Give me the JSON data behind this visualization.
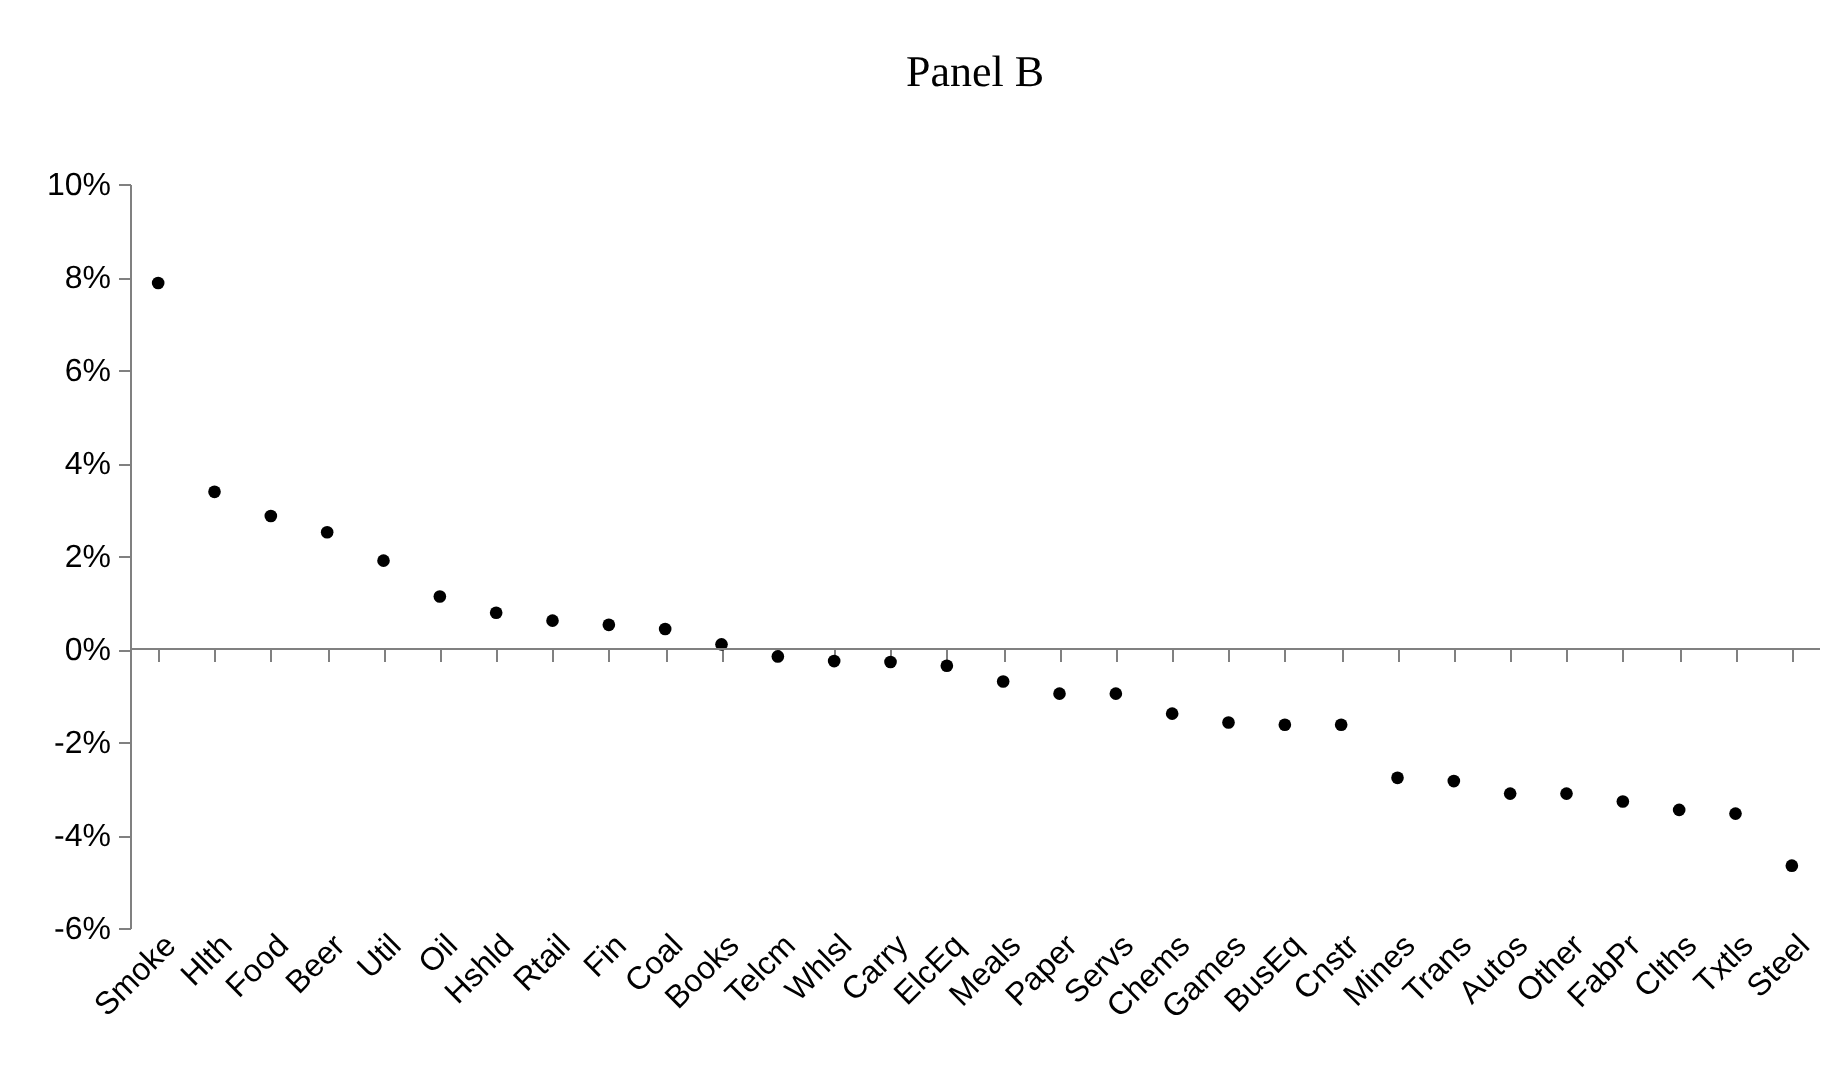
{
  "chart_data": {
    "type": "scatter",
    "title": "Panel B",
    "categories": [
      "Smoke",
      "Hlth",
      "Food",
      "Beer",
      "Util",
      "Oil",
      "Hshld",
      "Rtail",
      "Fin",
      "Coal",
      "Books",
      "Telcm",
      "Whlsl",
      "Carry",
      "ElcEq",
      "Meals",
      "Paper",
      "Servs",
      "Chems",
      "Games",
      "BusEq",
      "Cnstr",
      "Mines",
      "Trans",
      "Autos",
      "Other",
      "FabPr",
      "Clths",
      "Txtls",
      "Steel"
    ],
    "series": [
      {
        "color": "#000000",
        "values": [
          7.87,
          3.38,
          2.86,
          2.51,
          1.9,
          1.13,
          0.78,
          0.61,
          0.52,
          0.43,
          0.1,
          -0.16,
          -0.26,
          -0.28,
          -0.36,
          -0.7,
          -0.96,
          -0.96,
          -1.39,
          -1.58,
          -1.63,
          -1.63,
          -2.77,
          -2.84,
          -3.11,
          -3.11,
          -3.28,
          -3.46,
          -3.54,
          -4.66
        ]
      }
    ],
    "ylim": [
      -6,
      10
    ],
    "yticks": [
      {
        "value": -6,
        "label": "-6%"
      },
      {
        "value": -4,
        "label": "-4%"
      },
      {
        "value": -2,
        "label": "-2%"
      },
      {
        "value": 0,
        "label": "0%"
      },
      {
        "value": 2,
        "label": "2%"
      },
      {
        "value": 4,
        "label": "4%"
      },
      {
        "value": 6,
        "label": "6%"
      },
      {
        "value": 8,
        "label": "8%"
      },
      {
        "value": 10,
        "label": "10%"
      }
    ],
    "ref_lines": [
      {
        "axis": "y",
        "value": 0,
        "color": "#808080"
      }
    ],
    "marker": "circle",
    "grid": false,
    "legend": false
  }
}
